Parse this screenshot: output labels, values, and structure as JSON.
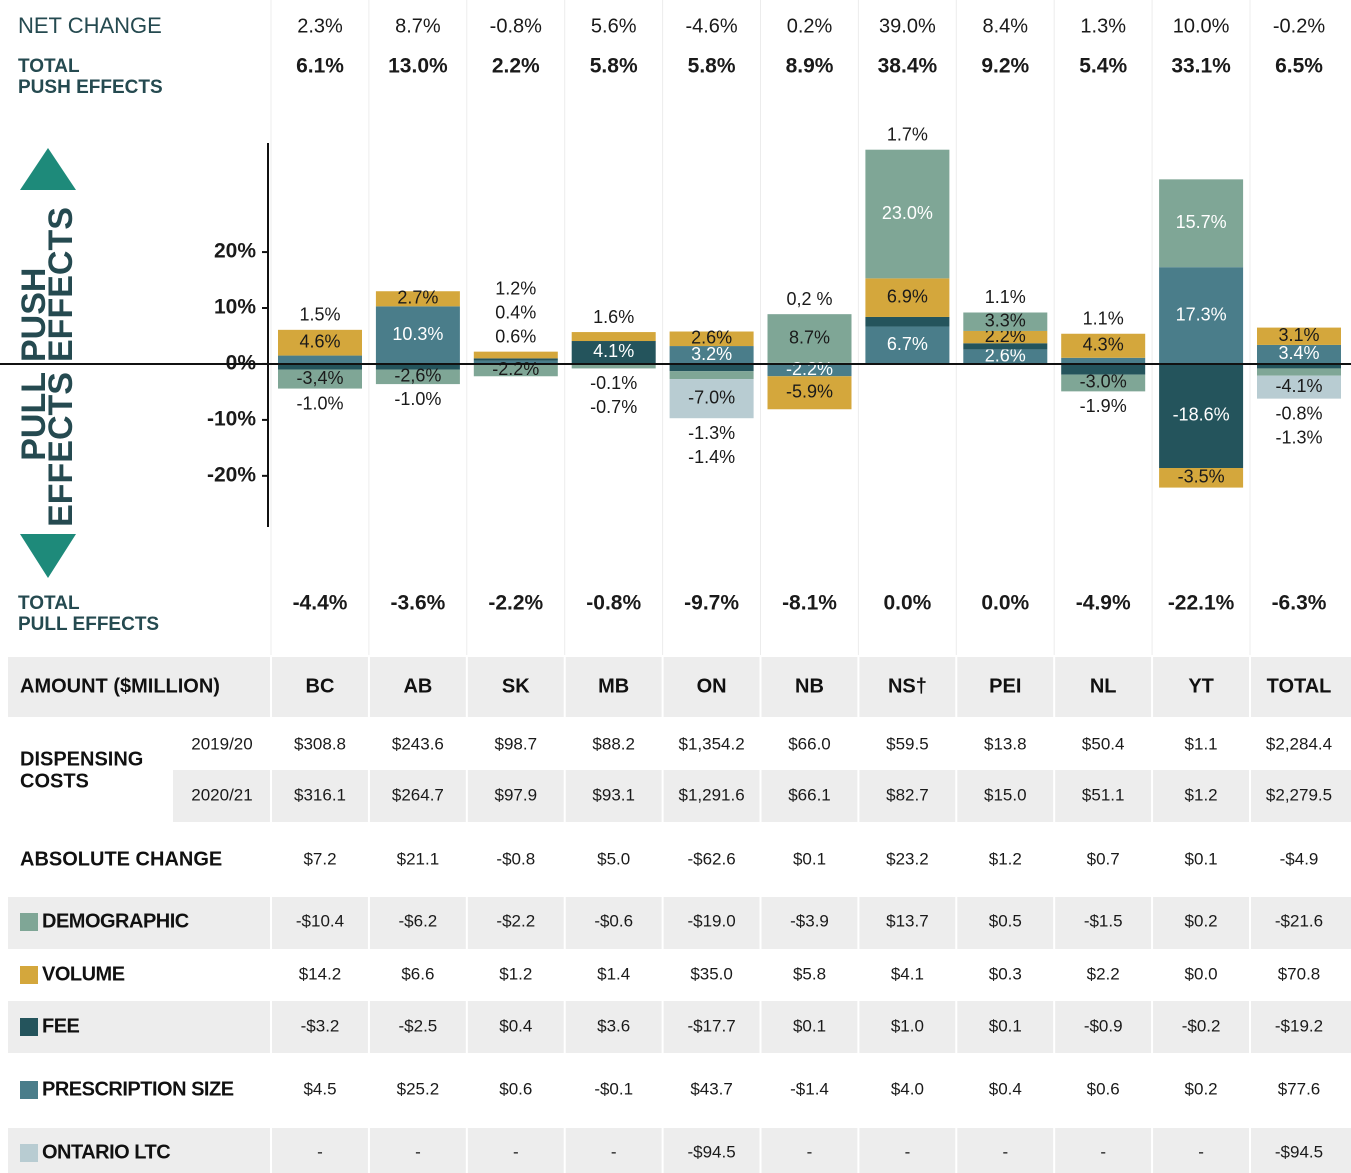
{
  "chart_data": {
    "type": "bar",
    "stacked": true,
    "categories": [
      "BC",
      "AB",
      "SK",
      "MB",
      "ON",
      "NB",
      "NS†",
      "PEI",
      "NL",
      "YT",
      "TOTAL"
    ],
    "net_change": {
      "label": "NET CHANGE",
      "values": [
        "2.3%",
        "8.7%",
        "-0.8%",
        "5.6%",
        "-4.6%",
        "0.2%",
        "39.0%",
        "8.4%",
        "1.3%",
        "10.0%",
        "-0.2%"
      ]
    },
    "total_push": {
      "label": [
        "TOTAL",
        "PUSH EFFECTS"
      ],
      "values": [
        "6.1%",
        "13.0%",
        "2.2%",
        "5.8%",
        "5.8%",
        "8.9%",
        "38.4%",
        "9.2%",
        "5.4%",
        "33.1%",
        "6.5%"
      ]
    },
    "total_pull": {
      "label": [
        "TOTAL",
        "PULL EFFECTS"
      ],
      "values": [
        "-4.4%",
        "-3.6%",
        "-2.2%",
        "-0.8%",
        "-9.7%",
        "-8.1%",
        "0.0%",
        "0.0%",
        "-4.9%",
        "-22.1%",
        "-6.3%"
      ]
    },
    "push_label": [
      "PUSH",
      "EFFECTS"
    ],
    "pull_label": [
      "PULL",
      "EFFECTS"
    ],
    "ylim": [
      -27,
      42
    ],
    "yticks": [
      {
        "value": 20,
        "label": "20%"
      },
      {
        "value": 10,
        "label": "10%"
      },
      {
        "value": 0,
        "label": "0%"
      },
      {
        "value": -10,
        "label": "-10%"
      },
      {
        "value": -20,
        "label": "-20%"
      }
    ],
    "series": [
      {
        "name": "DEMOGRAPHIC",
        "color": "#7fa696",
        "values": [
          -3.4,
          -2.6,
          -2.2,
          -0.7,
          -1.4,
          8.7,
          23.0,
          3.3,
          -3.0,
          15.7,
          -1.3
        ],
        "value_labels": [
          "-3,4%",
          "-2,6%",
          "-2.2%",
          "-0.7%",
          "-1.4%",
          "8.7%",
          "23.0%",
          "3.3%",
          "-3.0%",
          "15.7%",
          "-1.3%"
        ]
      },
      {
        "name": "VOLUME",
        "color": "#d4a73c",
        "values": [
          4.6,
          2.7,
          1.2,
          1.6,
          2.6,
          -5.9,
          6.9,
          2.2,
          4.3,
          -3.5,
          3.1
        ],
        "value_labels": [
          "4.6%",
          "2.7%",
          "1.2%",
          "1.6%",
          "2.6%",
          "-5.9%",
          "6.9%",
          "2.2%",
          "4.3%",
          "-3.5%",
          "3.1%"
        ]
      },
      {
        "name": "FEE",
        "color": "#24545c",
        "values": [
          -1.0,
          -1.0,
          0.4,
          4.1,
          -1.3,
          0.2,
          1.7,
          1.1,
          -1.9,
          -18.6,
          -0.8
        ],
        "value_labels": [
          "-1.0%",
          "-1.0%",
          "0.4%",
          "4.1%",
          "-1.3%",
          "0,2 %",
          "1.7%",
          "1.1%",
          "-1.9%",
          "-18.6%",
          "-0.8%"
        ]
      },
      {
        "name": "PRESCRIPTION SIZE",
        "color": "#4a7d8a",
        "values": [
          1.5,
          10.3,
          0.6,
          -0.1,
          3.2,
          -2.2,
          6.7,
          2.6,
          1.1,
          17.3,
          3.4
        ],
        "value_labels": [
          "1.5%",
          "10.3%",
          "0.6%",
          "-0.1%",
          "3.2%",
          "-2.2%",
          "6.7%",
          "2.6%",
          "1.1%",
          "17.3%",
          "3.4%"
        ]
      },
      {
        "name": "ONTARIO LTC",
        "color": "#b8ccd2",
        "values": [
          null,
          null,
          null,
          null,
          -7.0,
          null,
          null,
          null,
          null,
          null,
          -4.1
        ],
        "value_labels": [
          null,
          null,
          null,
          null,
          "-7.0%",
          null,
          null,
          null,
          null,
          null,
          "-4.1%"
        ]
      }
    ]
  },
  "table": {
    "header": "AMOUNT ($MILLION)",
    "dispensing": {
      "label": [
        "DISPENSING",
        "COSTS"
      ],
      "rows": [
        {
          "year": "2019/20",
          "values": [
            "$308.8",
            "$243.6",
            "$98.7",
            "$88.2",
            "$1,354.2",
            "$66.0",
            "$59.5",
            "$13.8",
            "$50.4",
            "$1.1",
            "$2,284.4"
          ]
        },
        {
          "year": "2020/21",
          "values": [
            "$316.1",
            "$264.7",
            "$97.9",
            "$93.1",
            "$1,291.6",
            "$66.1",
            "$82.7",
            "$15.0",
            "$51.1",
            "$1.2",
            "$2,279.5"
          ]
        }
      ]
    },
    "absolute_change": {
      "label": "ABSOLUTE CHANGE",
      "values": [
        "$7.2",
        "$21.1",
        "-$0.8",
        "$5.0",
        "-$62.6",
        "$0.1",
        "$23.2",
        "$1.2",
        "$0.7",
        "$0.1",
        "-$4.9"
      ]
    },
    "components": [
      [
        "-$10.4",
        "-$6.2",
        "-$2.2",
        "-$0.6",
        "-$19.0",
        "-$3.9",
        "$13.7",
        "$0.5",
        "-$1.5",
        "$0.2",
        "-$21.6"
      ],
      [
        "$14.2",
        "$6.6",
        "$1.2",
        "$1.4",
        "$35.0",
        "$5.8",
        "$4.1",
        "$0.3",
        "$2.2",
        "$0.0",
        "$70.8"
      ],
      [
        "-$3.2",
        "-$2.5",
        "$0.4",
        "$3.6",
        "-$17.7",
        "$0.1",
        "$1.0",
        "$0.1",
        "-$0.9",
        "-$0.2",
        "-$19.2"
      ],
      [
        "$4.5",
        "$25.2",
        "$0.6",
        "-$0.1",
        "$43.7",
        "-$1.4",
        "$4.0",
        "$0.4",
        "$0.6",
        "$0.2",
        "$77.6"
      ],
      [
        "-",
        "-",
        "-",
        "-",
        "-$94.5",
        "-",
        "-",
        "-",
        "-",
        "-",
        "-$94.5"
      ]
    ]
  }
}
